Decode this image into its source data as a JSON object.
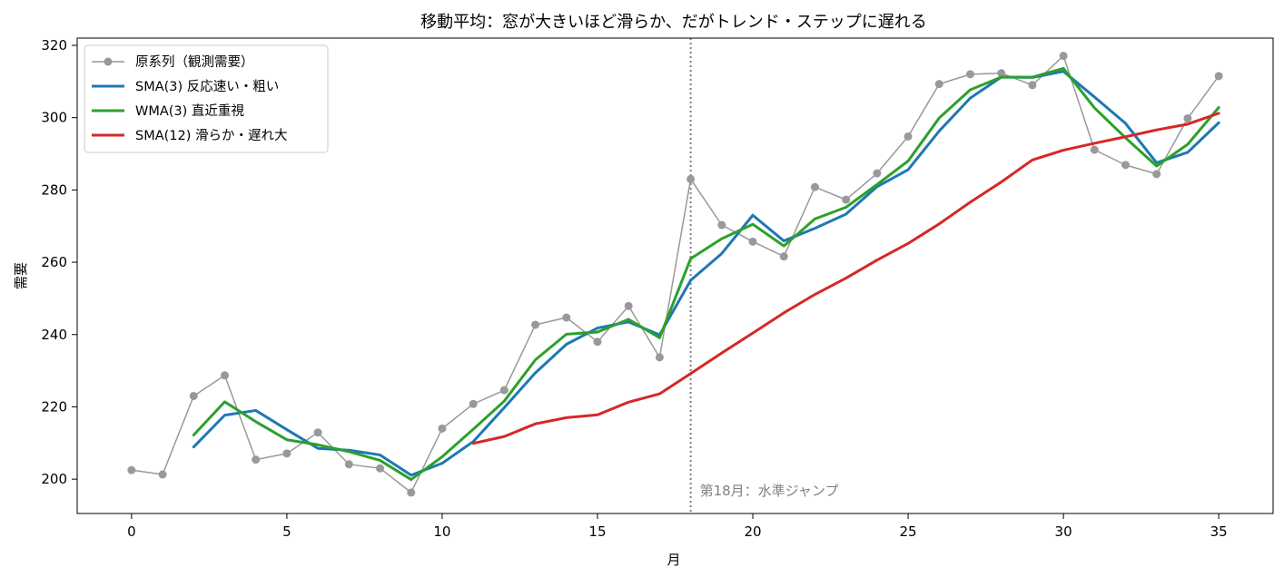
{
  "chart_data": {
    "type": "line",
    "title": "移動平均：窓が大きいほど滑らか、だがトレンド・ステップに遅れる",
    "xlabel": "月",
    "ylabel": "需要",
    "xlim": [
      -1.75,
      36.75
    ],
    "ylim": [
      190.5,
      322.0
    ],
    "xticks": [
      0,
      5,
      10,
      15,
      20,
      25,
      30,
      35
    ],
    "yticks": [
      200,
      220,
      240,
      260,
      280,
      300,
      320
    ],
    "grid": false,
    "legend_position": "top-left",
    "annotation": {
      "x": 18,
      "text": "第18月：水準ジャンプ",
      "color": "#808080"
    },
    "series": [
      {
        "name": "原系列（観測需要）",
        "color": "#999999",
        "style": "thin-line-markers",
        "x": [
          0,
          1,
          2,
          3,
          4,
          5,
          6,
          7,
          8,
          9,
          10,
          11,
          12,
          13,
          14,
          15,
          16,
          17,
          18,
          19,
          20,
          21,
          22,
          23,
          24,
          25,
          26,
          27,
          28,
          29,
          30,
          31,
          32,
          33,
          34,
          35
        ],
        "y": [
          202.5,
          201.3,
          223.0,
          228.7,
          205.4,
          207.1,
          212.9,
          204.1,
          203.0,
          196.3,
          214.0,
          220.8,
          224.6,
          242.7,
          244.7,
          238.0,
          247.9,
          233.7,
          283.0,
          270.3,
          265.7,
          261.6,
          280.8,
          277.3,
          284.6,
          294.8,
          309.3,
          312.0,
          312.3,
          309.0,
          317.1,
          291.1,
          286.9,
          284.4,
          299.8,
          311.5
        ]
      },
      {
        "name": "SMA(3) 反応速い・粗い",
        "color": "#1f77b4",
        "style": "line",
        "x": [
          2,
          3,
          4,
          5,
          6,
          7,
          8,
          9,
          10,
          11,
          12,
          13,
          14,
          15,
          16,
          17,
          18,
          19,
          20,
          21,
          22,
          23,
          24,
          25,
          26,
          27,
          28,
          29,
          30,
          31,
          32,
          33,
          34,
          35
        ],
        "y": [
          208.9,
          217.7,
          219.0,
          213.7,
          208.5,
          208.0,
          206.7,
          201.1,
          204.4,
          210.4,
          219.8,
          229.4,
          237.3,
          241.8,
          243.5,
          239.9,
          255.0,
          262.4,
          273.0,
          265.9,
          269.4,
          273.3,
          280.9,
          285.6,
          296.3,
          305.4,
          311.2,
          311.1,
          312.8,
          305.7,
          298.4,
          287.5,
          290.4,
          298.6
        ]
      },
      {
        "name": "WMA(3) 直近重視",
        "color": "#2ca02c",
        "style": "line",
        "x": [
          2,
          3,
          4,
          5,
          6,
          7,
          8,
          9,
          10,
          11,
          12,
          13,
          14,
          15,
          16,
          17,
          18,
          19,
          20,
          21,
          22,
          23,
          24,
          25,
          26,
          27,
          28,
          29,
          30,
          31,
          32,
          33,
          34,
          35
        ],
        "y": [
          212.2,
          221.4,
          215.9,
          210.9,
          209.5,
          207.6,
          205.2,
          199.9,
          206.2,
          213.8,
          221.6,
          233.0,
          240.1,
          240.7,
          244.2,
          239.1,
          261.0,
          266.5,
          270.5,
          264.5,
          272.0,
          275.2,
          281.5,
          288.0,
          299.9,
          307.7,
          311.2,
          311.2,
          313.6,
          302.7,
          294.4,
          286.6,
          292.6,
          302.8
        ]
      },
      {
        "name": "SMA(12) 滑らか・遅れ大",
        "color": "#d62728",
        "style": "line",
        "x": [
          11,
          12,
          13,
          14,
          15,
          16,
          17,
          18,
          19,
          20,
          21,
          22,
          23,
          24,
          25,
          26,
          27,
          28,
          29,
          30,
          31,
          32,
          33,
          34,
          35
        ],
        "y": [
          209.9,
          211.8,
          215.3,
          217.0,
          217.8,
          221.3,
          223.6,
          229.2,
          234.9,
          240.4,
          246.0,
          251.1,
          255.6,
          260.6,
          265.2,
          270.6,
          276.6,
          282.2,
          288.3,
          291.0,
          292.9,
          294.7,
          296.6,
          298.2,
          301.2
        ]
      }
    ]
  }
}
